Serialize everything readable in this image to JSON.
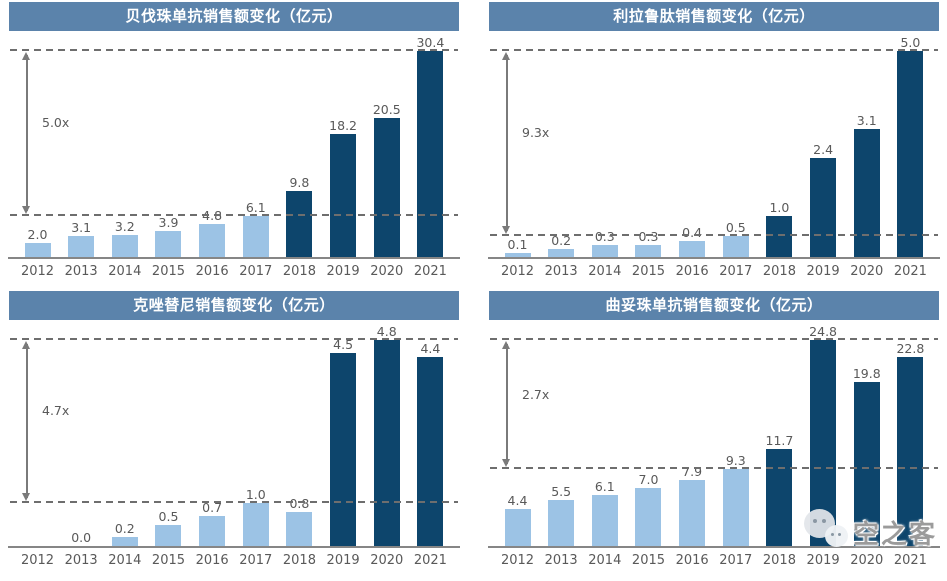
{
  "palette": {
    "title_bg": "#5b83ab",
    "title_text": "#ffffff",
    "bar_light": "#9cc3e5",
    "bar_dark": "#0d456c",
    "dash_line": "#6e6e6e",
    "arrow": "#7a7a7a",
    "value_label": "#595959",
    "axis_label": "#595959",
    "axis_line": "#868686",
    "watermark_text": "#9b9b9b"
  },
  "watermark": {
    "text": "空之客",
    "icon": "wechat-logo"
  },
  "chart_data": [
    {
      "type": "bar",
      "title": "贝伐珠单抗销售额变化（亿元）",
      "categories": [
        "2012",
        "2013",
        "2014",
        "2015",
        "2016",
        "2017",
        "2018",
        "2019",
        "2020",
        "2021"
      ],
      "values": [
        2.0,
        3.1,
        3.2,
        3.9,
        4.8,
        6.1,
        9.8,
        18.2,
        20.5,
        30.4
      ],
      "bar_colors": [
        "light",
        "light",
        "light",
        "light",
        "light",
        "light",
        "dark",
        "dark",
        "dark",
        "dark"
      ],
      "ylim": [
        0,
        30.4
      ],
      "grid": false,
      "legend": "none",
      "reference_lines": {
        "style": "dashed",
        "top": 30.4,
        "bottom": 6.1
      },
      "annotation": "5.0x"
    },
    {
      "type": "bar",
      "title": "利拉鲁肽销售额变化（亿元）",
      "categories": [
        "2012",
        "2013",
        "2014",
        "2015",
        "2016",
        "2017",
        "2018",
        "2019",
        "2020",
        "2021"
      ],
      "values": [
        0.1,
        0.2,
        0.3,
        0.3,
        0.4,
        0.5,
        1.0,
        2.4,
        3.1,
        5.0
      ],
      "bar_colors": [
        "light",
        "light",
        "light",
        "light",
        "light",
        "light",
        "dark",
        "dark",
        "dark",
        "dark"
      ],
      "ylim": [
        0,
        5.0
      ],
      "grid": false,
      "legend": "none",
      "reference_lines": {
        "style": "dashed",
        "top": 5.0,
        "bottom": 0.5
      },
      "annotation": "9.3x"
    },
    {
      "type": "bar",
      "title": "克唑替尼销售额变化（亿元）",
      "categories": [
        "2012",
        "2013",
        "2014",
        "2015",
        "2016",
        "2017",
        "2018",
        "2019",
        "2020",
        "2021"
      ],
      "values": [
        null,
        0.0,
        0.2,
        0.5,
        0.7,
        1.0,
        0.8,
        4.5,
        4.8,
        4.4
      ],
      "bar_colors": [
        "light",
        "light",
        "light",
        "light",
        "light",
        "light",
        "light",
        "dark",
        "dark",
        "dark"
      ],
      "ylim": [
        0,
        4.8
      ],
      "grid": false,
      "legend": "none",
      "reference_lines": {
        "style": "dashed",
        "top": 4.8,
        "bottom": 1.0
      },
      "annotation": "4.7x"
    },
    {
      "type": "bar",
      "title": "曲妥珠单抗销售额变化（亿元）",
      "categories": [
        "2012",
        "2013",
        "2014",
        "2015",
        "2016",
        "2017",
        "2018",
        "2019",
        "2020",
        "2021"
      ],
      "values": [
        4.4,
        5.5,
        6.1,
        7.0,
        7.9,
        9.3,
        11.7,
        24.8,
        19.8,
        22.8
      ],
      "bar_colors": [
        "light",
        "light",
        "light",
        "light",
        "light",
        "light",
        "dark",
        "dark",
        "dark",
        "dark"
      ],
      "ylim": [
        0,
        24.8
      ],
      "grid": false,
      "legend": "none",
      "reference_lines": {
        "style": "dashed",
        "top": 24.8,
        "bottom": 9.3
      },
      "annotation": "2.7x"
    }
  ]
}
